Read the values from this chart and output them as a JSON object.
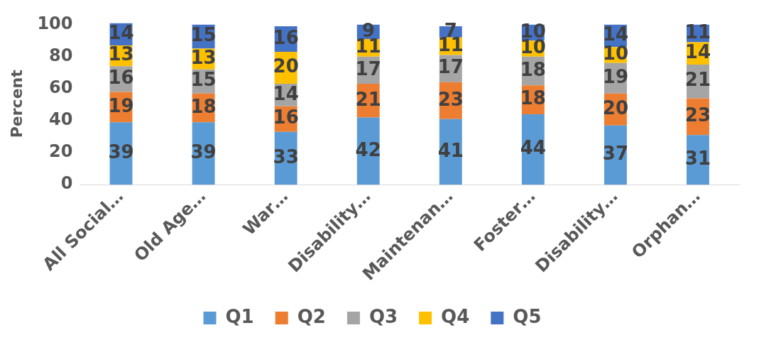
{
  "chart_data": {
    "type": "bar",
    "stacked": true,
    "ylabel": "Percent",
    "categories": [
      "All Social…",
      "Old Age…",
      "War…",
      "Disability…",
      "Maintenan…",
      "Foster…",
      "Disability…",
      "Orphan…"
    ],
    "series": [
      {
        "name": "Q1",
        "color": "#5b9bd5",
        "values": [
          39,
          39,
          33,
          42,
          41,
          44,
          37,
          31
        ]
      },
      {
        "name": "Q2",
        "color": "#ed7d31",
        "values": [
          19,
          18,
          16,
          21,
          23,
          18,
          20,
          23
        ]
      },
      {
        "name": "Q3",
        "color": "#a5a5a5",
        "values": [
          16,
          15,
          14,
          17,
          17,
          18,
          19,
          21
        ]
      },
      {
        "name": "Q4",
        "color": "#ffc000",
        "values": [
          13,
          13,
          20,
          11,
          11,
          10,
          10,
          14
        ]
      },
      {
        "name": "Q5",
        "color": "#4472c4",
        "values": [
          14,
          15,
          16,
          9,
          7,
          10,
          14,
          11
        ]
      }
    ],
    "ylim": [
      0,
      101
    ],
    "yticks": [
      0,
      20,
      40,
      60,
      80,
      100
    ],
    "grid": false,
    "legend": "bottom",
    "data_labels": true
  }
}
